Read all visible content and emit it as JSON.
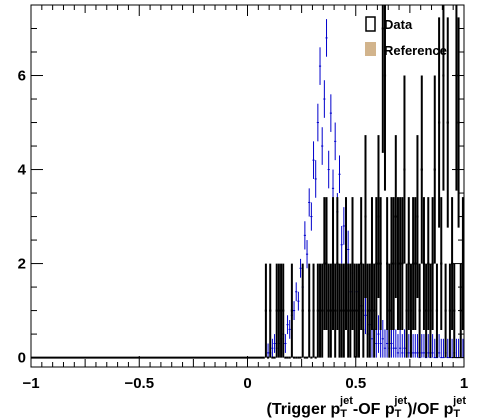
{
  "chart_data": {
    "type": "line",
    "title": "",
    "xlabel": "(Trigger p_T^jet - OF p_T^jet)/OF p_T^jet",
    "xlabel_parts": {
      "open": "(Trigger p",
      "sub": "T",
      "sup": "jet",
      "mid": "-OF p",
      "close": ")/OF p"
    },
    "ylabel": "",
    "xlim": [
      -1,
      1
    ],
    "ylim": [
      -0.2,
      7.5
    ],
    "x_ticks": [
      -1,
      -0.5,
      0,
      0.5,
      1
    ],
    "x_tick_labels": [
      "−1",
      "−0.5",
      "0",
      "0.5",
      "1"
    ],
    "y_ticks": [
      0,
      2,
      4,
      6
    ],
    "y_tick_labels": [
      "0",
      "2",
      "4",
      "6"
    ],
    "legend_position": "top-right",
    "legend": [
      {
        "label": "Data",
        "color": "#000000"
      },
      {
        "label": "Reference",
        "color": "#d2b48c"
      }
    ],
    "series": [
      {
        "name": "Data",
        "color": "#000000",
        "bin_width": 0.01,
        "x": [
          0.085,
          0.095,
          0.105,
          0.115,
          0.125,
          0.135,
          0.145,
          0.155,
          0.165,
          0.175,
          0.185,
          0.195,
          0.205,
          0.215,
          0.225,
          0.235,
          0.245,
          0.255,
          0.265,
          0.275,
          0.285,
          0.295,
          0.305,
          0.315,
          0.325,
          0.335,
          0.345,
          0.355,
          0.365,
          0.375,
          0.385,
          0.395,
          0.405,
          0.415,
          0.425,
          0.435,
          0.445,
          0.455,
          0.465,
          0.475,
          0.485,
          0.495,
          0.505,
          0.515,
          0.525,
          0.535,
          0.545,
          0.555,
          0.565,
          0.575,
          0.585,
          0.595,
          0.605,
          0.615,
          0.625,
          0.635,
          0.645,
          0.655,
          0.665,
          0.675,
          0.685,
          0.695,
          0.705,
          0.715,
          0.725,
          0.735,
          0.745,
          0.755,
          0.765,
          0.775,
          0.785,
          0.795,
          0.805,
          0.815,
          0.825,
          0.835,
          0.845,
          0.855,
          0.865,
          0.875,
          0.885,
          0.895,
          0.905,
          0.915,
          0.925,
          0.935,
          0.945,
          0.955,
          0.965,
          0.975,
          0.985,
          0.995
        ],
        "values": [
          1,
          0,
          1,
          0,
          0,
          1,
          1,
          1,
          1,
          0,
          0,
          0,
          1,
          0,
          0,
          0,
          0,
          1,
          0,
          0,
          1,
          0,
          1,
          0,
          1,
          1,
          1,
          2,
          2,
          1,
          1,
          2,
          1,
          2,
          1,
          1,
          1,
          2,
          1,
          1,
          2,
          1,
          1,
          1,
          2,
          1,
          3,
          1,
          1,
          2,
          1,
          2,
          3,
          2,
          7,
          6,
          2,
          1,
          2,
          2,
          3,
          2,
          2,
          2,
          4,
          1,
          2,
          1,
          2,
          2,
          3,
          1,
          4,
          2,
          1,
          2,
          1,
          2,
          4,
          1,
          5,
          2,
          6,
          1,
          5,
          1,
          2,
          1,
          6,
          5,
          1,
          2
        ]
      },
      {
        "name": "Reference",
        "color": "#0000cc",
        "bin_width": 0.01,
        "x": [
          0.095,
          0.105,
          0.115,
          0.125,
          0.135,
          0.145,
          0.155,
          0.165,
          0.175,
          0.185,
          0.195,
          0.205,
          0.215,
          0.225,
          0.235,
          0.245,
          0.255,
          0.265,
          0.275,
          0.285,
          0.295,
          0.305,
          0.315,
          0.325,
          0.335,
          0.345,
          0.355,
          0.365,
          0.375,
          0.385,
          0.395,
          0.405,
          0.415,
          0.425,
          0.435,
          0.445,
          0.455,
          0.465,
          0.475,
          0.485,
          0.495,
          0.505,
          0.515,
          0.525,
          0.535,
          0.545,
          0.555,
          0.565,
          0.575,
          0.585,
          0.595,
          0.605,
          0.615,
          0.625,
          0.635,
          0.645,
          0.655,
          0.665,
          0.675,
          0.685,
          0.695,
          0.705,
          0.715,
          0.725,
          0.735,
          0.745,
          0.755,
          0.765,
          0.775,
          0.785,
          0.795,
          0.805,
          0.815,
          0.825,
          0.835,
          0.845,
          0.855,
          0.865,
          0.875,
          0.885,
          0.895,
          0.905,
          0.915,
          0.925,
          0.935,
          0.945,
          0.955,
          0.965,
          0.975,
          0.985,
          0.995
        ],
        "values": [
          0.1,
          0.1,
          0.2,
          0.3,
          0.2,
          0.3,
          0.4,
          0.5,
          0.3,
          0.7,
          0.6,
          0.9,
          1.0,
          1.4,
          1.2,
          1.9,
          1.5,
          2.6,
          2.2,
          3.3,
          3.0,
          4.2,
          3.8,
          5.0,
          6.2,
          4.5,
          5.5,
          6.8,
          4.0,
          5.2,
          3.6,
          4.6,
          3.1,
          3.9,
          2.4,
          2.8,
          1.9,
          2.3,
          1.4,
          1.8,
          1.0,
          1.4,
          0.8,
          1.1,
          0.6,
          0.9,
          0.5,
          0.7,
          0.4,
          0.6,
          0.3,
          0.5,
          0.3,
          0.4,
          0.2,
          0.3,
          0.2,
          0.3,
          0.2,
          0.2,
          0.1,
          0.2,
          0.1,
          0.2,
          0.1,
          0.1,
          0.1,
          0.1,
          0.1,
          0.1,
          0.0,
          0.1,
          0.1,
          0.0,
          0.1,
          0.0,
          0.1,
          0.0,
          0.0,
          0.1,
          0.0,
          0.0,
          0.1,
          0.0,
          0.0,
          0.0,
          0.1,
          0.0,
          0.0,
          0.0,
          0.0
        ],
        "upper_error": [
          0.3,
          0.3,
          0.4,
          0.5,
          0.4,
          0.5,
          0.6,
          0.7,
          0.5,
          0.9,
          0.8,
          1.1,
          1.2,
          1.6,
          1.4,
          2.1,
          1.7,
          2.9,
          2.5,
          3.6,
          3.3,
          4.6,
          4.2,
          5.4,
          6.6,
          4.9,
          5.9,
          7.2,
          4.4,
          5.6,
          4.0,
          5.0,
          3.5,
          4.3,
          2.8,
          3.2,
          2.3,
          2.7,
          1.8,
          2.2,
          1.4,
          1.8,
          1.2,
          1.5,
          1.0,
          1.3,
          0.9,
          1.1,
          0.8,
          1.0,
          0.7,
          0.9,
          0.7,
          0.8,
          0.6,
          0.7,
          0.6,
          0.7,
          0.6,
          0.6,
          0.5,
          0.6,
          0.5,
          0.6,
          0.5,
          0.5,
          0.5,
          0.5,
          0.5,
          0.5,
          0.4,
          0.5,
          0.5,
          0.4,
          0.5,
          0.4,
          0.5,
          0.4,
          0.4,
          0.5,
          0.4,
          0.4,
          0.5,
          0.4,
          0.4,
          0.4,
          0.5,
          0.4,
          0.4,
          0.4,
          0.4
        ]
      }
    ]
  }
}
